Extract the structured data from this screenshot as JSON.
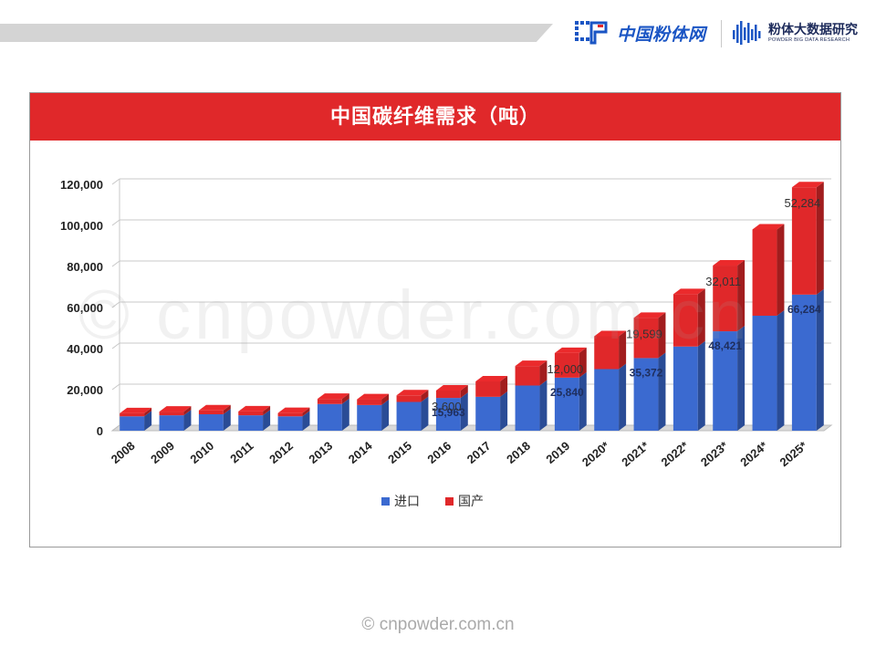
{
  "header": {
    "brand_left": "中国粉体网",
    "brand_right_cn": "粉体大数据研究",
    "brand_right_en": "POWDER BIG DATA RESEARCH"
  },
  "watermark": "© cnpowder.com.cn",
  "footer": "© cnpowder.com.cn",
  "colors": {
    "import": "#3b6ad0",
    "domestic": "#e0282a",
    "header": "#e0282a"
  },
  "chart_data": {
    "type": "bar",
    "stacked": true,
    "title": "中国碳纤维需求（吨）",
    "categories": [
      "2008",
      "2009",
      "2010",
      "2011",
      "2012",
      "2013",
      "2014",
      "2015",
      "2016",
      "2017",
      "2018",
      "2019",
      "2020*",
      "2021*",
      "2022*",
      "2023*",
      "2024*",
      "2025*"
    ],
    "series": [
      {
        "name": "进口",
        "values": [
          7000,
          7500,
          8000,
          7500,
          7000,
          13000,
          12500,
          14000,
          15963,
          16500,
          22000,
          25840,
          30000,
          35372,
          41000,
          48421,
          56000,
          66284
        ]
      },
      {
        "name": "国产",
        "values": [
          1500,
          1800,
          1900,
          1900,
          1600,
          2500,
          2800,
          3200,
          3600,
          7500,
          9500,
          12000,
          16000,
          19599,
          25500,
          32011,
          42000,
          52284
        ]
      }
    ],
    "data_labels": [
      {
        "series": 0,
        "index": 8,
        "text": "15,963"
      },
      {
        "series": 1,
        "index": 8,
        "text": "3,600"
      },
      {
        "series": 0,
        "index": 11,
        "text": "25,840"
      },
      {
        "series": 1,
        "index": 11,
        "text": "12,000"
      },
      {
        "series": 0,
        "index": 13,
        "text": "35,372"
      },
      {
        "series": 1,
        "index": 13,
        "text": "19,599"
      },
      {
        "series": 0,
        "index": 15,
        "text": "48,421"
      },
      {
        "series": 1,
        "index": 15,
        "text": "32,011"
      },
      {
        "series": 0,
        "index": 17,
        "text": "66,284"
      },
      {
        "series": 1,
        "index": 17,
        "text": "52,284"
      }
    ],
    "yticks": [
      0,
      20000,
      40000,
      60000,
      80000,
      100000,
      120000
    ],
    "ytick_labels": [
      "0",
      "20,000",
      "40,000",
      "60,000",
      "80,000",
      "100,000",
      "120,000"
    ],
    "ylim": [
      0,
      120000
    ],
    "grid": true,
    "legend_position": "bottom"
  }
}
